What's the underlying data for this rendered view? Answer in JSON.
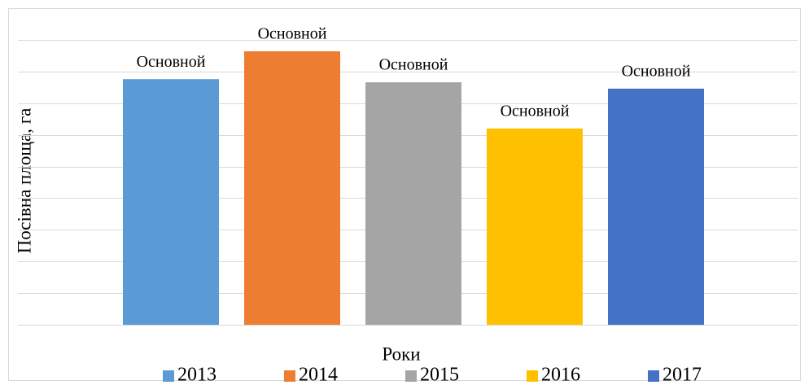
{
  "chart_data": {
    "type": "bar",
    "x_label": "Роки",
    "y_label": "Посівна площа, га",
    "categories": [
      null
    ],
    "series": [
      {
        "name": "2013",
        "color": "#5b9bd5",
        "values": [
          7.76
        ],
        "labels": [
          "Основной"
        ]
      },
      {
        "name": "2014",
        "color": "#ed7d31",
        "values": [
          8.64
        ],
        "labels": [
          "Основной"
        ]
      },
      {
        "name": "2015",
        "color": "#a5a5a5",
        "values": [
          7.66
        ],
        "labels": [
          "Основной"
        ]
      },
      {
        "name": "2016",
        "color": "#ffc000",
        "values": [
          6.2
        ],
        "labels": [
          "Основной"
        ]
      },
      {
        "name": "2017",
        "color": "#4472c4",
        "values": [
          7.46
        ],
        "labels": [
          "Основной"
        ]
      }
    ],
    "ylim": [
      0,
      9
    ],
    "yticks": [
      0,
      1,
      2,
      3,
      4,
      5,
      6,
      7,
      8,
      9
    ],
    "grid": true,
    "legend": "bottom"
  }
}
